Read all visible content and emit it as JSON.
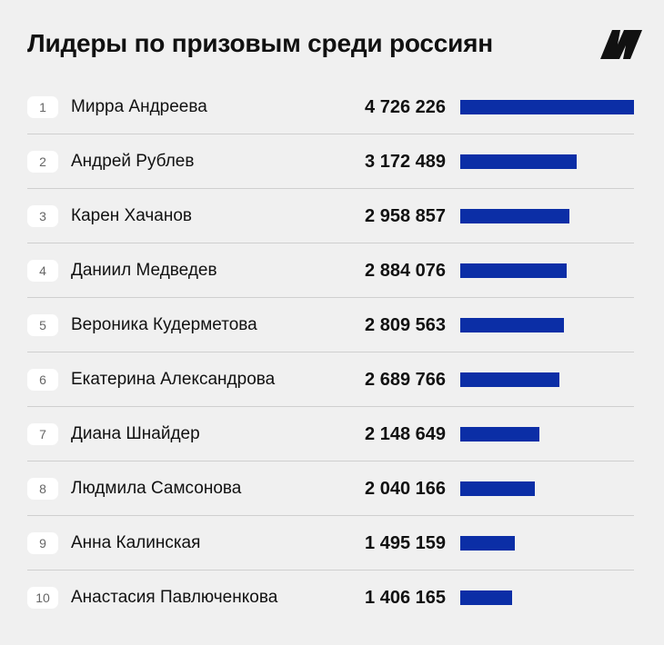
{
  "header": {
    "title": "Лидеры по призовым среди россиян"
  },
  "colors": {
    "background": "#f0f0f0",
    "bar": "#0b2ea6",
    "text": "#111111",
    "divider": "#cfcfcf",
    "rank_badge": "#ffffff"
  },
  "logo": {
    "icon": "publisher-logo-icon"
  },
  "chart_data": {
    "type": "bar",
    "orientation": "horizontal",
    "title": "Лидеры по призовым среди россиян",
    "xlabel": "",
    "ylabel": "",
    "grid": false,
    "legend": "none",
    "xlim": [
      0,
      4726226
    ],
    "ranks": [
      "1",
      "2",
      "3",
      "4",
      "5",
      "6",
      "7",
      "8",
      "9",
      "10"
    ],
    "categories": [
      "Мирра Андреева",
      "Андрей Рублев",
      "Карен Хачанов",
      "Даниил Медведев",
      "Вероника Кудерметова",
      "Екатерина Александрова",
      "Диана Шнайдер",
      "Людмила Самсонова",
      "Анна Калинская",
      "Анастасия Павлюченкова"
    ],
    "values": [
      4726226,
      3172489,
      2958857,
      2884076,
      2809563,
      2689766,
      2148649,
      2040166,
      1495159,
      1406165
    ],
    "value_labels": [
      "4 726 226",
      "3 172 489",
      "2 958 857",
      "2 884 076",
      "2 809 563",
      "2 689 766",
      "2 148 649",
      "2 040 166",
      "1 495 159",
      "1 406 165"
    ]
  }
}
